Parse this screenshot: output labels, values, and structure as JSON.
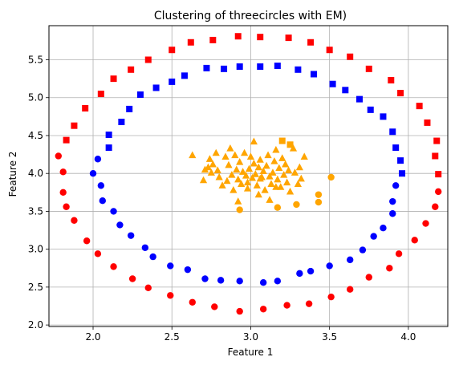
{
  "chart_data": {
    "type": "scatter",
    "title": "Clustering of threecircles with EM)",
    "xlabel": "Feature 1",
    "ylabel": "Feature 2",
    "xlim": [
      1.72,
      4.25
    ],
    "ylim": [
      1.98,
      5.95
    ],
    "xticks": [
      "2.0",
      "2.5",
      "3.0",
      "3.5",
      "4.0"
    ],
    "yticks": [
      "2.0",
      "2.5",
      "3.0",
      "3.5",
      "4.0",
      "4.5",
      "5.0",
      "5.5"
    ],
    "grid": true,
    "series": [
      {
        "color": "#ff0000",
        "marker": "square",
        "points": [
          [
            1.83,
            4.44
          ],
          [
            1.88,
            4.63
          ],
          [
            1.95,
            4.86
          ],
          [
            2.05,
            5.05
          ],
          [
            2.13,
            5.25
          ],
          [
            2.24,
            5.37
          ],
          [
            2.35,
            5.5
          ],
          [
            2.5,
            5.63
          ],
          [
            2.62,
            5.73
          ],
          [
            2.76,
            5.76
          ],
          [
            2.92,
            5.81
          ],
          [
            3.06,
            5.8
          ],
          [
            3.24,
            5.79
          ],
          [
            3.38,
            5.73
          ],
          [
            3.5,
            5.63
          ],
          [
            3.63,
            5.54
          ],
          [
            3.75,
            5.38
          ],
          [
            3.89,
            5.23
          ],
          [
            3.95,
            5.06
          ],
          [
            4.07,
            4.89
          ],
          [
            4.12,
            4.67
          ],
          [
            4.18,
            4.43
          ],
          [
            4.17,
            4.23
          ],
          [
            4.19,
            3.99
          ]
        ]
      },
      {
        "color": "#ff0000",
        "marker": "circle",
        "points": [
          [
            1.78,
            4.23
          ],
          [
            1.81,
            4.02
          ],
          [
            1.81,
            3.75
          ],
          [
            1.83,
            3.56
          ],
          [
            1.88,
            3.38
          ],
          [
            1.96,
            3.11
          ],
          [
            2.03,
            2.94
          ],
          [
            2.13,
            2.77
          ],
          [
            2.25,
            2.61
          ],
          [
            2.35,
            2.49
          ],
          [
            2.49,
            2.39
          ],
          [
            2.63,
            2.3
          ],
          [
            2.77,
            2.24
          ],
          [
            2.93,
            2.18
          ],
          [
            3.08,
            2.21
          ],
          [
            3.23,
            2.26
          ],
          [
            3.37,
            2.28
          ],
          [
            3.51,
            2.37
          ],
          [
            3.63,
            2.47
          ],
          [
            3.75,
            2.63
          ],
          [
            3.88,
            2.75
          ],
          [
            3.94,
            2.94
          ],
          [
            4.04,
            3.12
          ],
          [
            4.11,
            3.34
          ],
          [
            4.17,
            3.56
          ],
          [
            4.19,
            3.76
          ]
        ]
      },
      {
        "color": "#0000ff",
        "marker": "square",
        "points": [
          [
            2.1,
            4.34
          ],
          [
            2.1,
            4.51
          ],
          [
            2.18,
            4.68
          ],
          [
            2.23,
            4.85
          ],
          [
            2.3,
            5.04
          ],
          [
            2.4,
            5.13
          ],
          [
            2.5,
            5.21
          ],
          [
            2.58,
            5.29
          ],
          [
            2.72,
            5.39
          ],
          [
            2.83,
            5.38
          ],
          [
            2.93,
            5.41
          ],
          [
            3.06,
            5.41
          ],
          [
            3.17,
            5.42
          ],
          [
            3.3,
            5.37
          ],
          [
            3.4,
            5.31
          ],
          [
            3.52,
            5.18
          ],
          [
            3.6,
            5.1
          ],
          [
            3.69,
            4.98
          ],
          [
            3.76,
            4.84
          ],
          [
            3.84,
            4.75
          ],
          [
            3.9,
            4.55
          ],
          [
            3.92,
            4.34
          ],
          [
            3.95,
            4.17
          ],
          [
            3.96,
            4.0
          ]
        ]
      },
      {
        "color": "#0000ff",
        "marker": "circle",
        "points": [
          [
            2.0,
            4.0
          ],
          [
            2.03,
            4.19
          ],
          [
            2.05,
            3.84
          ],
          [
            2.06,
            3.64
          ],
          [
            2.13,
            3.5
          ],
          [
            2.17,
            3.32
          ],
          [
            2.24,
            3.18
          ],
          [
            2.33,
            3.02
          ],
          [
            2.38,
            2.9
          ],
          [
            2.49,
            2.78
          ],
          [
            2.6,
            2.73
          ],
          [
            2.71,
            2.61
          ],
          [
            2.81,
            2.59
          ],
          [
            2.93,
            2.58
          ],
          [
            3.08,
            2.56
          ],
          [
            3.17,
            2.58
          ],
          [
            3.31,
            2.68
          ],
          [
            3.38,
            2.71
          ],
          [
            3.5,
            2.78
          ],
          [
            3.63,
            2.86
          ],
          [
            3.71,
            2.99
          ],
          [
            3.78,
            3.17
          ],
          [
            3.84,
            3.28
          ],
          [
            3.9,
            3.47
          ],
          [
            3.9,
            3.63
          ],
          [
            3.92,
            3.84
          ]
        ]
      },
      {
        "color": "#ffa500",
        "marker": "triangle",
        "points": [
          [
            2.63,
            4.24
          ],
          [
            2.7,
            3.91
          ],
          [
            2.71,
            4.05
          ],
          [
            2.73,
            4.08
          ],
          [
            2.74,
            4.19
          ],
          [
            2.75,
            4.01
          ],
          [
            2.76,
            4.12
          ],
          [
            2.78,
            4.27
          ],
          [
            2.79,
            4.04
          ],
          [
            2.8,
            3.95
          ],
          [
            2.82,
            3.84
          ],
          [
            2.84,
            4.22
          ],
          [
            2.86,
            4.11
          ],
          [
            2.87,
            4.33
          ],
          [
            2.88,
            3.98
          ],
          [
            2.89,
            3.78
          ],
          [
            2.9,
            4.24
          ],
          [
            2.91,
            4.05
          ],
          [
            2.92,
            3.92
          ],
          [
            2.93,
            4.15
          ],
          [
            2.94,
            3.86
          ],
          [
            2.95,
            4.02
          ],
          [
            2.96,
            4.27
          ],
          [
            2.97,
            3.97
          ],
          [
            2.98,
            3.88
          ],
          [
            2.99,
            4.06
          ],
          [
            3.0,
            4.22
          ],
          [
            3.01,
            3.94
          ],
          [
            3.02,
            4.13
          ],
          [
            3.02,
            4.42
          ],
          [
            3.03,
            3.99
          ],
          [
            3.04,
            3.84
          ],
          [
            3.05,
            4.08
          ],
          [
            3.05,
            3.72
          ],
          [
            3.06,
            4.18
          ],
          [
            3.07,
            3.95
          ],
          [
            3.08,
            4.03
          ],
          [
            3.09,
            3.78
          ],
          [
            3.1,
            4.1
          ],
          [
            3.11,
            4.24
          ],
          [
            3.12,
            3.96
          ],
          [
            3.13,
            3.86
          ],
          [
            3.14,
            4.01
          ],
          [
            3.15,
            4.16
          ],
          [
            3.16,
            4.31
          ],
          [
            3.17,
            3.92
          ],
          [
            3.18,
            4.07
          ],
          [
            3.19,
            3.82
          ],
          [
            3.2,
            4.2
          ],
          [
            3.21,
            3.98
          ],
          [
            3.22,
            4.12
          ],
          [
            3.23,
            3.88
          ],
          [
            3.24,
            4.04
          ],
          [
            3.25,
            3.76
          ],
          [
            3.27,
            4.33
          ],
          [
            3.28,
            4.01
          ],
          [
            3.3,
            3.86
          ],
          [
            3.31,
            4.08
          ],
          [
            3.32,
            3.93
          ],
          [
            3.34,
            4.22
          ],
          [
            2.92,
            3.63
          ],
          [
            3.12,
            3.65
          ],
          [
            2.98,
            3.8
          ],
          [
            3.16,
            3.82
          ],
          [
            3.06,
            3.93
          ],
          [
            2.85,
            3.9
          ]
        ]
      },
      {
        "color": "#ffa500",
        "marker": "square",
        "points": [
          [
            3.2,
            4.43
          ],
          [
            3.25,
            4.38
          ]
        ]
      },
      {
        "color": "#ffa500",
        "marker": "circle",
        "points": [
          [
            2.93,
            3.52
          ],
          [
            3.17,
            3.55
          ],
          [
            3.29,
            3.59
          ],
          [
            3.43,
            3.62
          ],
          [
            3.43,
            3.72
          ],
          [
            3.51,
            3.95
          ]
        ]
      }
    ]
  }
}
